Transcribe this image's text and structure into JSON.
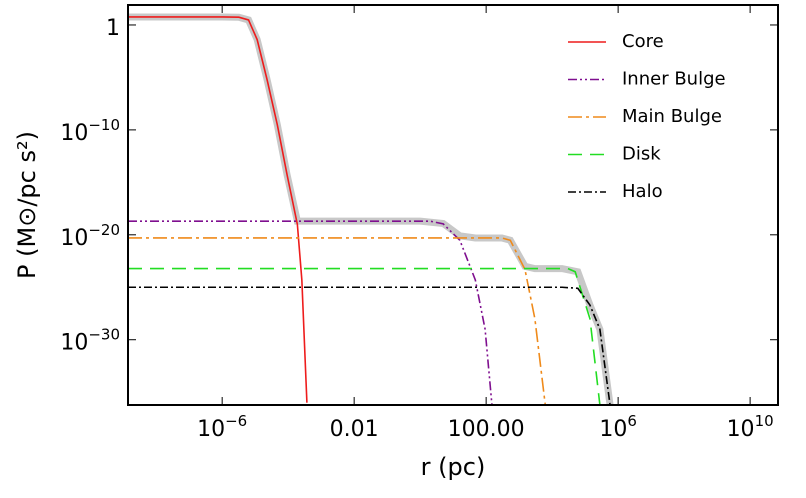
{
  "chart_data": {
    "type": "line",
    "xscale": "log",
    "yscale": "log",
    "xlabel": "r (pc)",
    "ylabel": "P (M⊙/pc s²)",
    "xlim": [
      1.4e-09,
      70000000000.0
    ],
    "ylim": [
      6e-37,
      80
    ],
    "xticks": [
      {
        "value": 1e-06,
        "label": "10−6"
      },
      0.01,
      {
        "value": 100,
        "label": "100.00"
      },
      {
        "value": 1000000.0,
        "label": "106"
      },
      {
        "value": 10000000000.0,
        "label": "1010"
      }
    ],
    "yticks": [
      1,
      {
        "value": 1e-10,
        "label": "10−10"
      },
      {
        "value": 1e-20,
        "label": "10−20"
      },
      {
        "value": 1e-30,
        "label": "10−30"
      }
    ],
    "legend": "upper right",
    "series": [
      {
        "color": "#c8c8c8",
        "width": 7,
        "x": [
          1.4e-09,
          1e-06,
          3.2e-06,
          6.3e-06,
          1.15e-05,
          2.3e-05,
          4.7e-05,
          9.3e-05,
          0.00019,
          0.00026,
          1,
          5,
          16,
          47,
          300,
          540,
          1500,
          3000,
          20000,
          60000,
          140000,
          280000,
          570000
        ],
        "values": [
          5.8,
          5.8,
          5.5,
          3,
          0.04,
          6e-06,
          3e-10,
          5e-15,
          2e-19,
          2e-19,
          2e-19,
          1.2e-19,
          8e-21,
          5e-21,
          5e-21,
          3e-21,
          1e-23,
          6e-24,
          6e-24,
          3e-24,
          2e-27,
          1e-29,
          6e-37
        ]
      },
      {
        "name": "Core",
        "color": "#ee1c1c",
        "dash": "none",
        "x": [
          1.4e-09,
          1e-06,
          3.2e-06,
          6.3e-06,
          1.15e-05,
          2.3e-05,
          4.7e-05,
          9.3e-05,
          0.00019,
          0.00026,
          0.00037
        ],
        "values": [
          5.8,
          5.8,
          5.5,
          3,
          0.04,
          6e-06,
          3e-10,
          5e-15,
          1e-19,
          5e-25,
          1e-36
        ]
      },
      {
        "name": "Inner Bulge",
        "color": "#7f0f8f",
        "dash": "9,3,2,3,2,3",
        "x": [
          1.4e-09,
          2,
          5,
          16,
          47,
          93,
          150
        ],
        "values": [
          2e-19,
          2e-19,
          1.1e-19,
          3e-21,
          5e-25,
          1e-29,
          6e-37
        ]
      },
      {
        "name": "Main Bulge",
        "color": "#ef8a1a",
        "dash": "14,4,3,4",
        "x": [
          1.4e-09,
          300,
          540,
          1500,
          3000,
          6200
        ],
        "values": [
          5e-21,
          5e-21,
          3e-21,
          5e-24,
          1e-28,
          6e-37
        ]
      },
      {
        "name": "Disk",
        "color": "#22dd22",
        "dash": "14,8",
        "x": [
          1.4e-09,
          30000,
          50000,
          140000,
          280000
        ],
        "values": [
          6e-24,
          6e-24,
          3e-24,
          1e-28,
          6e-37
        ]
      },
      {
        "name": "Halo",
        "color": "#000000",
        "dash": "8,3,2,3",
        "x": [
          1.4e-09,
          20000,
          60000,
          140000,
          280000,
          570000
        ],
        "values": [
          1e-25,
          1e-25,
          8e-26,
          2e-27,
          1e-29,
          6e-37
        ]
      }
    ]
  }
}
